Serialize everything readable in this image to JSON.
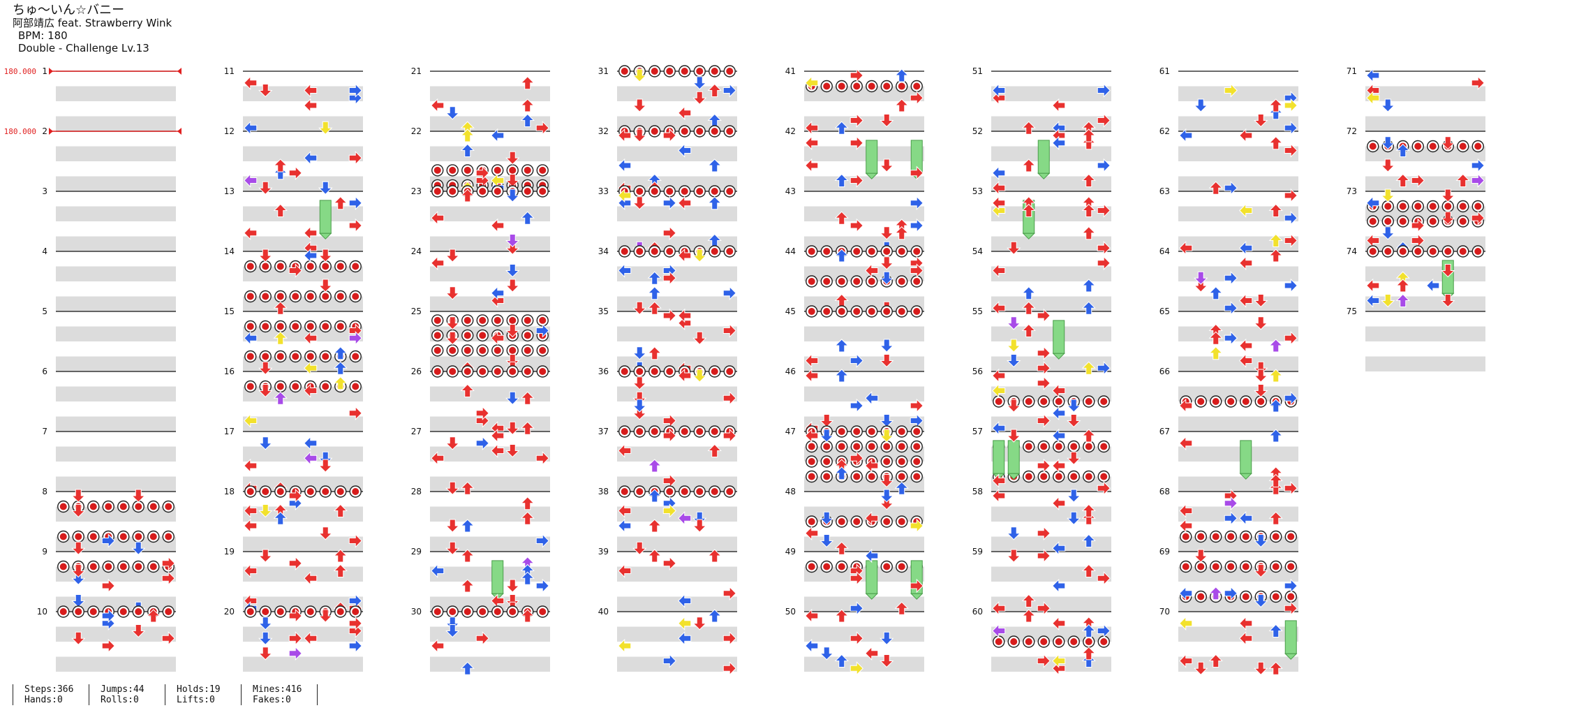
{
  "song": {
    "title": "ちゅ～いん☆バニー",
    "artist": "阿部靖広 feat. Strawberry Wink",
    "bpm_label": "BPM: 180",
    "chart_label": "Double - Challenge Lv.13"
  },
  "bpm_changes": [
    {
      "measure": 1,
      "label": "180.000"
    },
    {
      "measure": 2,
      "label": "180.000"
    }
  ],
  "measures": {
    "first": 1,
    "last": 75,
    "per_column": 10
  },
  "colors": {
    "red": "#e8312f",
    "blue": "#2f62e8",
    "yellow": "#f2e12c",
    "purple": "#a84be8",
    "hold_green": "#86d986",
    "mine_red": "#d71c1c",
    "stripe_gray": "#dcdcdc",
    "bpm_red": "#e02020"
  },
  "stats": [
    {
      "top": "Steps:366",
      "bottom": "Hands:0"
    },
    {
      "top": "Jumps:44",
      "bottom": "Rolls:0"
    },
    {
      "top": "Holds:19",
      "bottom": "Lifts:0"
    },
    {
      "top": "Mines:416",
      "bottom": "Fakes:0"
    }
  ]
}
